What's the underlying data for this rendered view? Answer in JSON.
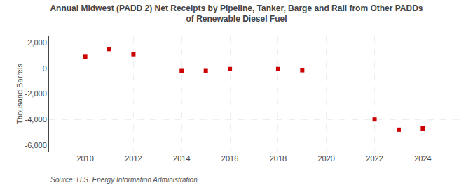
{
  "chart_data": {
    "type": "scatter",
    "title": "Annual Midwest (PADD 2) Net Receipts by Pipeline, Tanker, Barge and Rail from Other PADDs\nof Renewable Diesel Fuel",
    "ylabel": "Thousand Barrels",
    "source": "Source: U.S. Energy Information Administration",
    "x": [
      2010,
      2011,
      2012,
      2014,
      2015,
      2016,
      2018,
      2019,
      2022,
      2023,
      2024
    ],
    "values": [
      900,
      1500,
      1100,
      -200,
      -200,
      -50,
      -50,
      -150,
      -4000,
      -4800,
      -4700
    ],
    "color": "#cc0000",
    "marker": "square",
    "xlim": [
      2008.5,
      2025.5
    ],
    "xticks": [
      2010,
      2012,
      2014,
      2016,
      2018,
      2020,
      2022,
      2024
    ],
    "ylim": [
      -6500,
      2500
    ],
    "yticks": [
      {
        "value": -6000,
        "label": "-6,000"
      },
      {
        "value": -4000,
        "label": "-4,000"
      },
      {
        "value": -2000,
        "label": "-2,000"
      },
      0,
      {
        "value": 2000,
        "label": "2,000"
      }
    ],
    "grid": true
  }
}
